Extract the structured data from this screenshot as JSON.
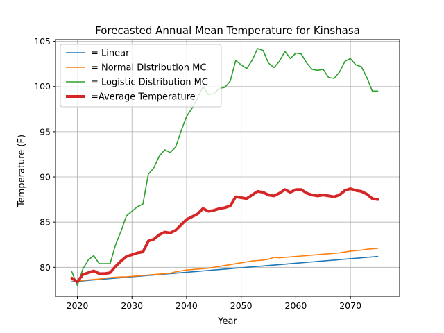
{
  "chart_data": {
    "type": "line",
    "title": "Forecasted Annual Mean Temperature for Kinshasa",
    "xlabel": "Year",
    "ylabel": "Temperature (F)",
    "xlim": [
      2016,
      2079
    ],
    "ylim": [
      76.8,
      105.2
    ],
    "xticks": [
      2020,
      2030,
      2040,
      2050,
      2060,
      2070
    ],
    "yticks": [
      80,
      85,
      90,
      95,
      100,
      105
    ],
    "grid": true,
    "legend_position": "top-left",
    "x": [
      2019,
      2020,
      2021,
      2022,
      2023,
      2024,
      2025,
      2026,
      2027,
      2028,
      2029,
      2030,
      2031,
      2032,
      2033,
      2034,
      2035,
      2036,
      2037,
      2038,
      2039,
      2040,
      2041,
      2042,
      2043,
      2044,
      2045,
      2046,
      2047,
      2048,
      2049,
      2050,
      2051,
      2052,
      2053,
      2054,
      2055,
      2056,
      2057,
      2058,
      2059,
      2060,
      2061,
      2062,
      2063,
      2064,
      2065,
      2066,
      2067,
      2068,
      2069,
      2070,
      2071,
      2072,
      2073,
      2074,
      2075
    ],
    "series": [
      {
        "name": "= Linear",
        "color": "#1f77b4",
        "width": 1.6,
        "values": [
          78.4,
          78.45,
          78.5,
          78.55,
          78.6,
          78.65,
          78.7,
          78.75,
          78.8,
          78.85,
          78.9,
          78.95,
          79.0,
          79.05,
          79.1,
          79.15,
          79.2,
          79.25,
          79.3,
          79.35,
          79.4,
          79.45,
          79.5,
          79.55,
          79.6,
          79.65,
          79.7,
          79.75,
          79.8,
          79.85,
          79.9,
          79.95,
          80.0,
          80.05,
          80.1,
          80.15,
          80.2,
          80.25,
          80.3,
          80.35,
          80.4,
          80.45,
          80.5,
          80.55,
          80.6,
          80.65,
          80.7,
          80.75,
          80.8,
          80.85,
          80.9,
          80.95,
          81.0,
          81.05,
          81.1,
          81.15,
          81.2
        ]
      },
      {
        "name": "= Normal Distribution MC",
        "color": "#ff7f0e",
        "width": 1.6,
        "values": [
          78.6,
          78.5,
          78.55,
          78.6,
          78.65,
          78.7,
          78.8,
          78.85,
          78.9,
          78.95,
          78.95,
          79.0,
          79.05,
          79.1,
          79.15,
          79.2,
          79.25,
          79.3,
          79.35,
          79.5,
          79.6,
          79.7,
          79.75,
          79.8,
          79.85,
          79.9,
          80.0,
          80.1,
          80.2,
          80.3,
          80.4,
          80.5,
          80.6,
          80.7,
          80.75,
          80.8,
          80.9,
          81.1,
          81.05,
          81.1,
          81.15,
          81.2,
          81.25,
          81.3,
          81.35,
          81.4,
          81.45,
          81.5,
          81.55,
          81.6,
          81.7,
          81.8,
          81.85,
          81.9,
          82.0,
          82.05,
          82.1
        ]
      },
      {
        "name": "= Logistic Distribution MC",
        "color": "#2ca02c",
        "width": 1.6,
        "values": [
          79.5,
          78.0,
          79.8,
          80.8,
          81.3,
          80.4,
          80.4,
          80.4,
          82.5,
          84.0,
          85.7,
          86.2,
          86.7,
          87.0,
          90.3,
          91.0,
          92.3,
          93.0,
          92.7,
          93.3,
          95.1,
          96.7,
          97.6,
          98.7,
          100.0,
          99.1,
          99.2,
          99.8,
          99.9,
          100.6,
          102.9,
          102.4,
          102.0,
          102.9,
          104.2,
          104.0,
          102.6,
          102.1,
          102.8,
          103.9,
          103.1,
          103.7,
          103.6,
          102.6,
          101.9,
          101.8,
          101.9,
          101.0,
          100.9,
          101.6,
          102.8,
          103.1,
          102.4,
          102.2,
          101.0,
          99.5,
          99.5
        ]
      },
      {
        "name": "=Average Temperature",
        "color": "#d62728",
        "width": 4,
        "values": [
          78.8,
          78.4,
          79.2,
          79.4,
          79.6,
          79.3,
          79.3,
          79.4,
          80.1,
          80.7,
          81.2,
          81.4,
          81.6,
          81.7,
          82.9,
          83.1,
          83.6,
          83.9,
          83.8,
          84.1,
          84.7,
          85.3,
          85.6,
          85.9,
          86.5,
          86.2,
          86.3,
          86.5,
          86.6,
          86.8,
          87.8,
          87.7,
          87.6,
          88.0,
          88.4,
          88.3,
          88.0,
          87.9,
          88.2,
          88.6,
          88.3,
          88.6,
          88.6,
          88.2,
          88.0,
          87.9,
          88.0,
          87.9,
          87.8,
          88.0,
          88.5,
          88.7,
          88.5,
          88.4,
          88.1,
          87.6,
          87.5
        ]
      }
    ]
  }
}
